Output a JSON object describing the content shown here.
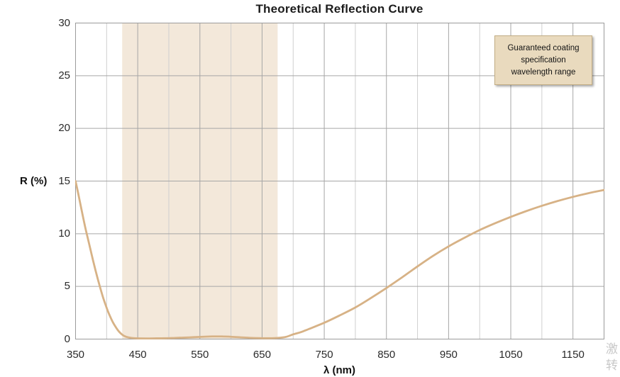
{
  "annotation": {
    "lines": [
      "Guaranteed coating",
      "specification",
      "wavelength range"
    ]
  },
  "watermark": {
    "lines": [
      "激",
      "转"
    ]
  },
  "colors": {
    "curve": "#d7b286",
    "band": "#f3e8da",
    "grid_major": "#a6a6a6",
    "grid_minor": "#cfcfcf",
    "plot_border": "#9b9b9b",
    "annotation_fill": "#e9dabe",
    "annotation_border": "#c2ad84",
    "text": "#1c1c1c"
  },
  "chart_data": {
    "type": "line",
    "title": "Theoretical Reflection Curve",
    "xlabel": "λ (nm)",
    "ylabel": "R (%)",
    "xlim": [
      350,
      1200
    ],
    "ylim": [
      0,
      30
    ],
    "x_ticks": [
      350,
      450,
      550,
      650,
      750,
      850,
      950,
      1050,
      1150
    ],
    "x_gridline_step": 50,
    "y_ticks": [
      0,
      5,
      10,
      15,
      20,
      25,
      30
    ],
    "grid": true,
    "legend_position": "none",
    "band": {
      "x_from": 425,
      "x_to": 675,
      "label": "Guaranteed coating specification wavelength range"
    },
    "series": [
      {
        "name": "Theoretical reflection",
        "points": [
          [
            350,
            15.0
          ],
          [
            354,
            13.9
          ],
          [
            358,
            12.75
          ],
          [
            362,
            11.6
          ],
          [
            366,
            10.5
          ],
          [
            370,
            9.5
          ],
          [
            374,
            8.5
          ],
          [
            378,
            7.5
          ],
          [
            382,
            6.55
          ],
          [
            386,
            5.65
          ],
          [
            390,
            4.8
          ],
          [
            394,
            4.0
          ],
          [
            398,
            3.3
          ],
          [
            402,
            2.65
          ],
          [
            406,
            2.1
          ],
          [
            410,
            1.6
          ],
          [
            414,
            1.2
          ],
          [
            418,
            0.85
          ],
          [
            422,
            0.58
          ],
          [
            426,
            0.38
          ],
          [
            430,
            0.25
          ],
          [
            435,
            0.16
          ],
          [
            440,
            0.11
          ],
          [
            450,
            0.07
          ],
          [
            465,
            0.06
          ],
          [
            480,
            0.07
          ],
          [
            495,
            0.08
          ],
          [
            510,
            0.11
          ],
          [
            525,
            0.14
          ],
          [
            540,
            0.18
          ],
          [
            555,
            0.22
          ],
          [
            570,
            0.25
          ],
          [
            585,
            0.25
          ],
          [
            600,
            0.22
          ],
          [
            615,
            0.17
          ],
          [
            630,
            0.12
          ],
          [
            645,
            0.09
          ],
          [
            660,
            0.08
          ],
          [
            675,
            0.11
          ],
          [
            688,
            0.2
          ],
          [
            700,
            0.45
          ],
          [
            712,
            0.65
          ],
          [
            725,
            0.95
          ],
          [
            750,
            1.55
          ],
          [
            775,
            2.25
          ],
          [
            800,
            3.0
          ],
          [
            825,
            3.9
          ],
          [
            850,
            4.85
          ],
          [
            875,
            5.85
          ],
          [
            900,
            6.9
          ],
          [
            925,
            7.9
          ],
          [
            950,
            8.8
          ],
          [
            975,
            9.6
          ],
          [
            1000,
            10.35
          ],
          [
            1025,
            11.0
          ],
          [
            1050,
            11.6
          ],
          [
            1075,
            12.15
          ],
          [
            1100,
            12.65
          ],
          [
            1125,
            13.1
          ],
          [
            1150,
            13.5
          ],
          [
            1175,
            13.85
          ],
          [
            1200,
            14.15
          ]
        ]
      }
    ]
  }
}
